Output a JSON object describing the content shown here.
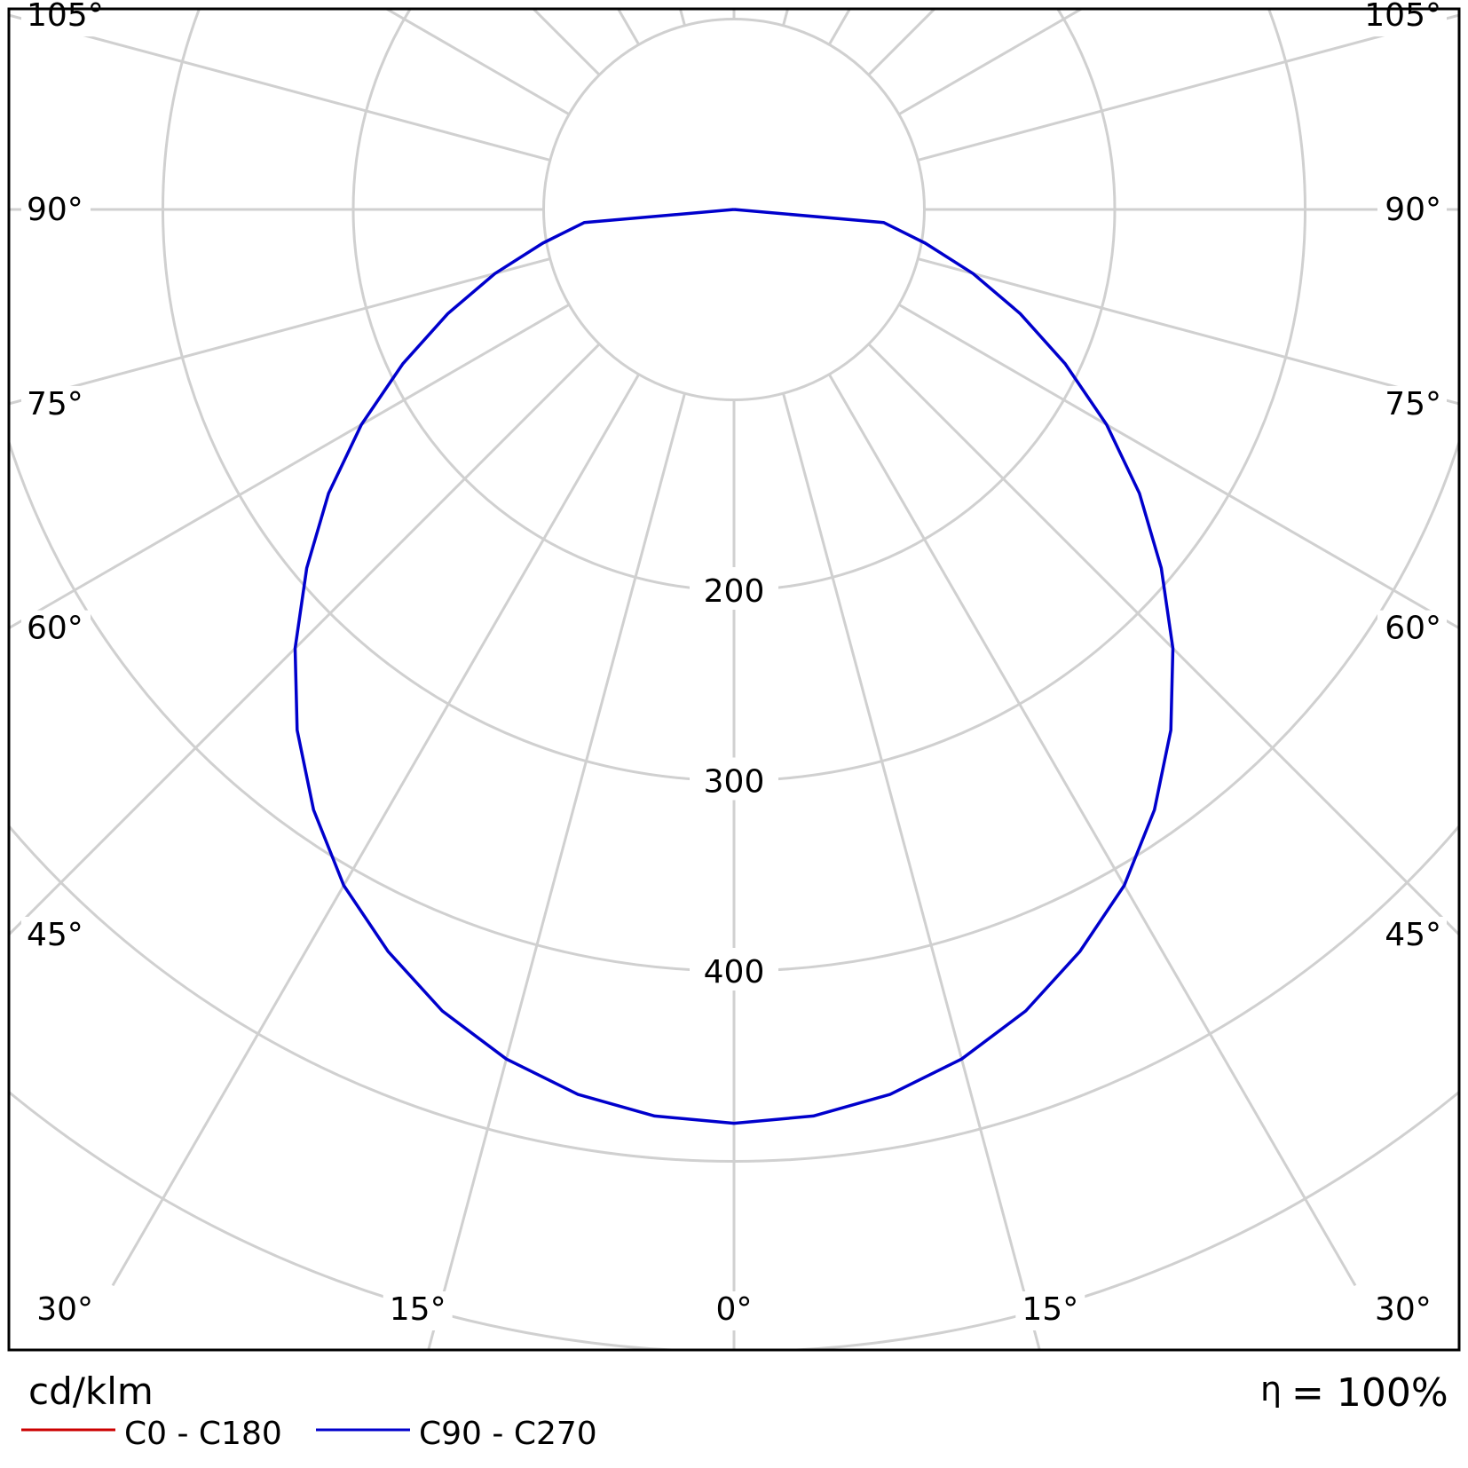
{
  "chart_data": {
    "type": "polar",
    "unit": "cd/klm",
    "efficiency_symbol": "η",
    "efficiency_value": "= 100%",
    "radial_rings": [
      100,
      200,
      300,
      400,
      500,
      600
    ],
    "radial_tick_labels": [
      "200",
      "300",
      "400"
    ],
    "angle_tick_labels": [
      {
        "label": "0°",
        "angle": 0
      },
      {
        "label": "15°",
        "angle": 15
      },
      {
        "label": "30°",
        "angle": 30
      },
      {
        "label": "45°",
        "angle": 45
      },
      {
        "label": "60°",
        "angle": 60
      },
      {
        "label": "75°",
        "angle": 75
      },
      {
        "label": "90°",
        "angle": 90
      },
      {
        "label": "105°",
        "angle": 105
      }
    ],
    "series": [
      {
        "name": "C0 - C180",
        "color": "#cc0000",
        "angles": [],
        "values": []
      },
      {
        "name": "C90 - C270",
        "color": "#0000cc",
        "angles": [
          0,
          5,
          10,
          15,
          20,
          25,
          30,
          35,
          40,
          45,
          50,
          55,
          60,
          65,
          70,
          75,
          80,
          85,
          90
        ],
        "values": [
          480,
          478,
          472,
          462,
          448,
          430,
          410,
          385,
          357,
          326,
          293,
          260,
          226,
          192,
          160,
          130,
          102,
          79,
          0
        ]
      }
    ],
    "legend": [
      {
        "label": "C0 - C180",
        "color": "#cc0000"
      },
      {
        "label": "C90 - C270",
        "color": "#0000cc"
      }
    ],
    "grid": true,
    "grid_color": "#d0d0d0"
  }
}
